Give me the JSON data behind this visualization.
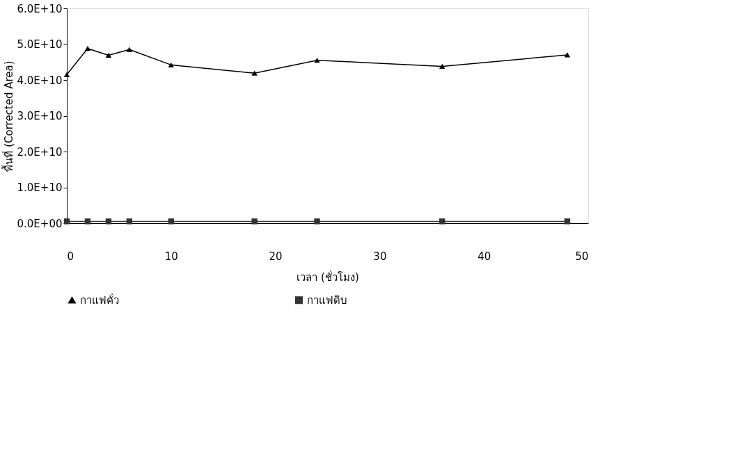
{
  "chart_data": {
    "type": "line",
    "xlabel": "เวลา (ชั่วโมง)",
    "ylabel": "พื้นที่ (Corrected Area)",
    "x": [
      0,
      2,
      4,
      6,
      10,
      18,
      24,
      36,
      48
    ],
    "series": [
      {
        "name": "กาแฟคั่ว",
        "color": "#000000",
        "marker": "triangle",
        "values": [
          41500000000.0,
          48800000000.0,
          46900000000.0,
          48500000000.0,
          44200000000.0,
          41900000000.0,
          45500000000.0,
          43800000000.0,
          47000000000.0
        ]
      },
      {
        "name": "กาแฟดิบ",
        "color": "#333333",
        "marker": "square",
        "values": [
          500000000.0,
          500000000.0,
          500000000.0,
          500000000.0,
          500000000.0,
          500000000.0,
          500000000.0,
          500000000.0,
          500000000.0
        ]
      }
    ],
    "xlim": [
      0,
      50
    ],
    "xticks": [
      0,
      10,
      20,
      30,
      40,
      50
    ],
    "ylim": [
      0,
      60000000000.0
    ],
    "yticks": [
      {
        "value": 0,
        "label": "0.0E+00"
      },
      {
        "value": 10000000000.0,
        "label": "1.0E+10"
      },
      {
        "value": 20000000000.0,
        "label": "2.0E+10"
      },
      {
        "value": 30000000000.0,
        "label": "3.0E+10"
      },
      {
        "value": 40000000000.0,
        "label": "4.0E+10"
      },
      {
        "value": 50000000000.0,
        "label": "5.0E+10"
      },
      {
        "value": 60000000000.0,
        "label": "6.0E+10"
      }
    ],
    "grid": false,
    "legend": "bottom",
    "line_style": "solid"
  }
}
